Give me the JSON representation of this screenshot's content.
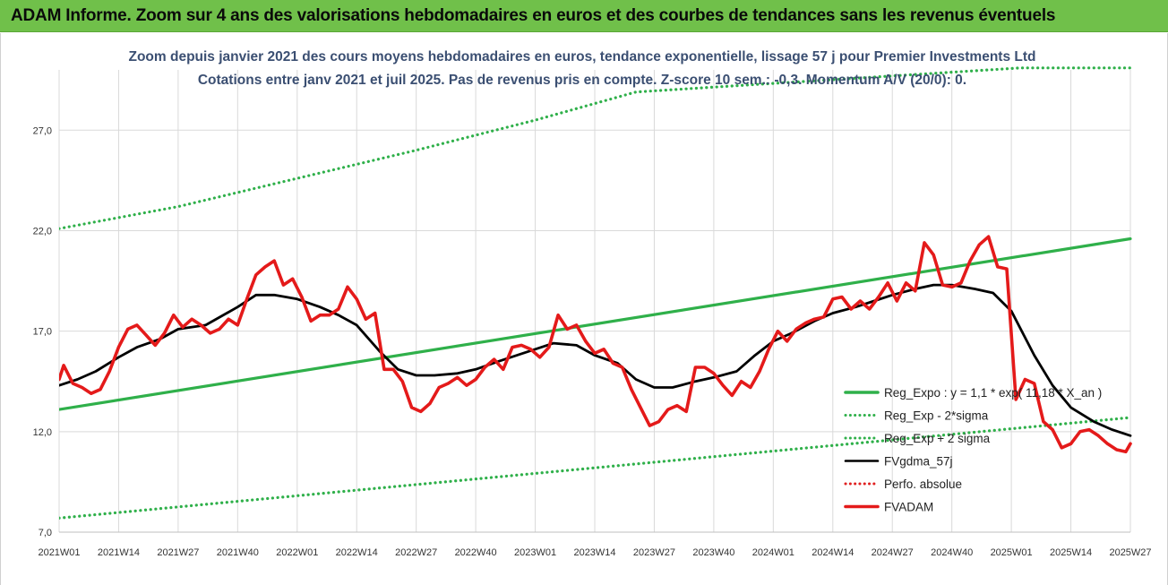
{
  "banner": {
    "title": "ADAM Informe. Zoom sur 4 ans des valorisations hebdomadaires en euros et des courbes de tendances sans les revenus éventuels",
    "background": "#70c04a"
  },
  "chart_data": {
    "type": "line",
    "title_line1": "Zoom depuis janvier 2021 des cours moyens hebdomadaires en euros, tendance exponentielle, lissage 57 j pour Premier Investments Ltd",
    "title_line2": "Cotations entre janv 2021 et juil 2025. Pas de revenus pris en compte. Z-score 10 sem.: -0,3. Momentum A/V (20/0): 0.",
    "ylim": [
      7.0,
      30.0
    ],
    "y_ticks": [
      "7,0",
      "12,0",
      "17,0",
      "22,0",
      "27,0"
    ],
    "y_tick_values": [
      7,
      12,
      17,
      22,
      27
    ],
    "x_ticks": [
      "2021W01",
      "2021W14",
      "2021W27",
      "2021W40",
      "2022W01",
      "2022W14",
      "2022W27",
      "2022W40",
      "2023W01",
      "2023W14",
      "2023W27",
      "2023W40",
      "2024W01",
      "2024W14",
      "2024W27",
      "2024W40",
      "2025W01",
      "2025W14",
      "2025W27"
    ],
    "x_tick_weeks": [
      0,
      13,
      26,
      39,
      52,
      65,
      78,
      91,
      104,
      117,
      130,
      143,
      156,
      169,
      182,
      195,
      208,
      221,
      234
    ],
    "grid": true,
    "legend_position": "bottom-right",
    "series": [
      {
        "name": "Reg_Expo : y = 1,1 * exp( 11,18 * X_an )",
        "color": "#2fb04a",
        "style": "solid",
        "x": [
          0,
          234
        ],
        "y": [
          13.1,
          21.6
        ]
      },
      {
        "name": "Reg_Exp - 2*sigma",
        "color": "#2fb04a",
        "style": "dotted",
        "x": [
          0,
          234
        ],
        "y": [
          7.7,
          12.7
        ]
      },
      {
        "name": "Reg_Exp + 2 sigma",
        "color": "#2fb04a",
        "style": "dotted",
        "x": [
          0,
          26,
          52,
          78,
          104,
          126,
          210,
          234
        ],
        "y": [
          22.1,
          23.2,
          24.6,
          26.0,
          27.5,
          28.9,
          30.1,
          30.1
        ]
      },
      {
        "name": "FVgdma_57j",
        "color": "#000000",
        "style": "solid",
        "x": [
          0,
          4,
          8,
          13,
          17,
          22,
          26,
          32,
          39,
          43,
          47,
          52,
          57,
          61,
          65,
          70,
          74,
          78,
          82,
          87,
          91,
          96,
          100,
          104,
          108,
          113,
          117,
          122,
          126,
          130,
          134,
          139,
          143,
          148,
          152,
          156,
          160,
          165,
          169,
          174,
          178,
          182,
          187,
          191,
          195,
          200,
          204,
          208,
          213,
          217,
          221,
          226,
          230,
          234
        ],
        "y": [
          14.3,
          14.6,
          15.0,
          15.7,
          16.2,
          16.6,
          17.1,
          17.3,
          18.2,
          18.8,
          18.8,
          18.6,
          18.2,
          17.8,
          17.3,
          16.0,
          15.1,
          14.8,
          14.8,
          14.9,
          15.1,
          15.5,
          15.8,
          16.1,
          16.4,
          16.3,
          15.8,
          15.4,
          14.6,
          14.2,
          14.2,
          14.5,
          14.7,
          15.0,
          15.8,
          16.5,
          16.9,
          17.5,
          17.9,
          18.2,
          18.5,
          18.8,
          19.1,
          19.3,
          19.3,
          19.1,
          18.9,
          18.0,
          15.8,
          14.3,
          13.2,
          12.5,
          12.1,
          11.8
        ]
      },
      {
        "name": "Perfo. absolue",
        "color": "#e02020",
        "style": "dotted",
        "x": [],
        "y": []
      },
      {
        "name": "FVADAM",
        "color": "#e41a1a",
        "style": "solid",
        "x": [
          0,
          1,
          3,
          5,
          7,
          9,
          11,
          13,
          15,
          17,
          19,
          21,
          23,
          25,
          27,
          29,
          31,
          33,
          35,
          37,
          39,
          41,
          43,
          45,
          47,
          49,
          51,
          53,
          55,
          57,
          59,
          61,
          63,
          65,
          67,
          69,
          71,
          73,
          75,
          77,
          79,
          81,
          83,
          85,
          87,
          89,
          91,
          93,
          95,
          97,
          99,
          101,
          103,
          105,
          107,
          109,
          111,
          113,
          115,
          117,
          119,
          121,
          123,
          125,
          127,
          129,
          131,
          133,
          135,
          137,
          139,
          141,
          143,
          145,
          147,
          149,
          151,
          153,
          155,
          157,
          159,
          161,
          163,
          165,
          167,
          169,
          171,
          173,
          175,
          177,
          179,
          181,
          183,
          185,
          187,
          189,
          191,
          193,
          195,
          197,
          199,
          201,
          203,
          205,
          207,
          209,
          211,
          213,
          215,
          217,
          219,
          221,
          223,
          225,
          227,
          229,
          231,
          233,
          234
        ],
        "y": [
          14.6,
          15.3,
          14.4,
          14.2,
          13.9,
          14.1,
          15.0,
          16.2,
          17.1,
          17.3,
          16.8,
          16.3,
          16.9,
          17.8,
          17.2,
          17.6,
          17.3,
          16.9,
          17.1,
          17.6,
          17.3,
          18.6,
          19.8,
          20.2,
          20.5,
          19.3,
          19.6,
          18.7,
          17.5,
          17.8,
          17.8,
          18.1,
          19.2,
          18.6,
          17.6,
          17.9,
          15.1,
          15.1,
          14.5,
          13.2,
          13.0,
          13.4,
          14.2,
          14.4,
          14.7,
          14.3,
          14.6,
          15.2,
          15.6,
          15.1,
          16.2,
          16.3,
          16.1,
          15.7,
          16.2,
          17.8,
          17.1,
          17.3,
          16.5,
          15.9,
          16.1,
          15.4,
          15.2,
          14.1,
          13.2,
          12.3,
          12.5,
          13.1,
          13.3,
          13.0,
          15.2,
          15.2,
          14.9,
          14.3,
          13.8,
          14.5,
          14.2,
          15.0,
          16.1,
          17.0,
          16.5,
          17.1,
          17.4,
          17.6,
          17.7,
          18.6,
          18.7,
          18.1,
          18.5,
          18.1,
          18.7,
          19.4,
          18.5,
          19.4,
          19.0,
          21.4,
          20.8,
          19.3,
          19.2,
          19.4,
          20.5,
          21.3,
          21.7,
          20.2,
          20.1,
          13.6,
          14.6,
          14.4,
          12.5,
          12.1,
          11.2,
          11.4,
          12.0,
          12.1,
          11.8,
          11.4,
          11.1,
          11.0,
          11.4
        ]
      }
    ]
  }
}
